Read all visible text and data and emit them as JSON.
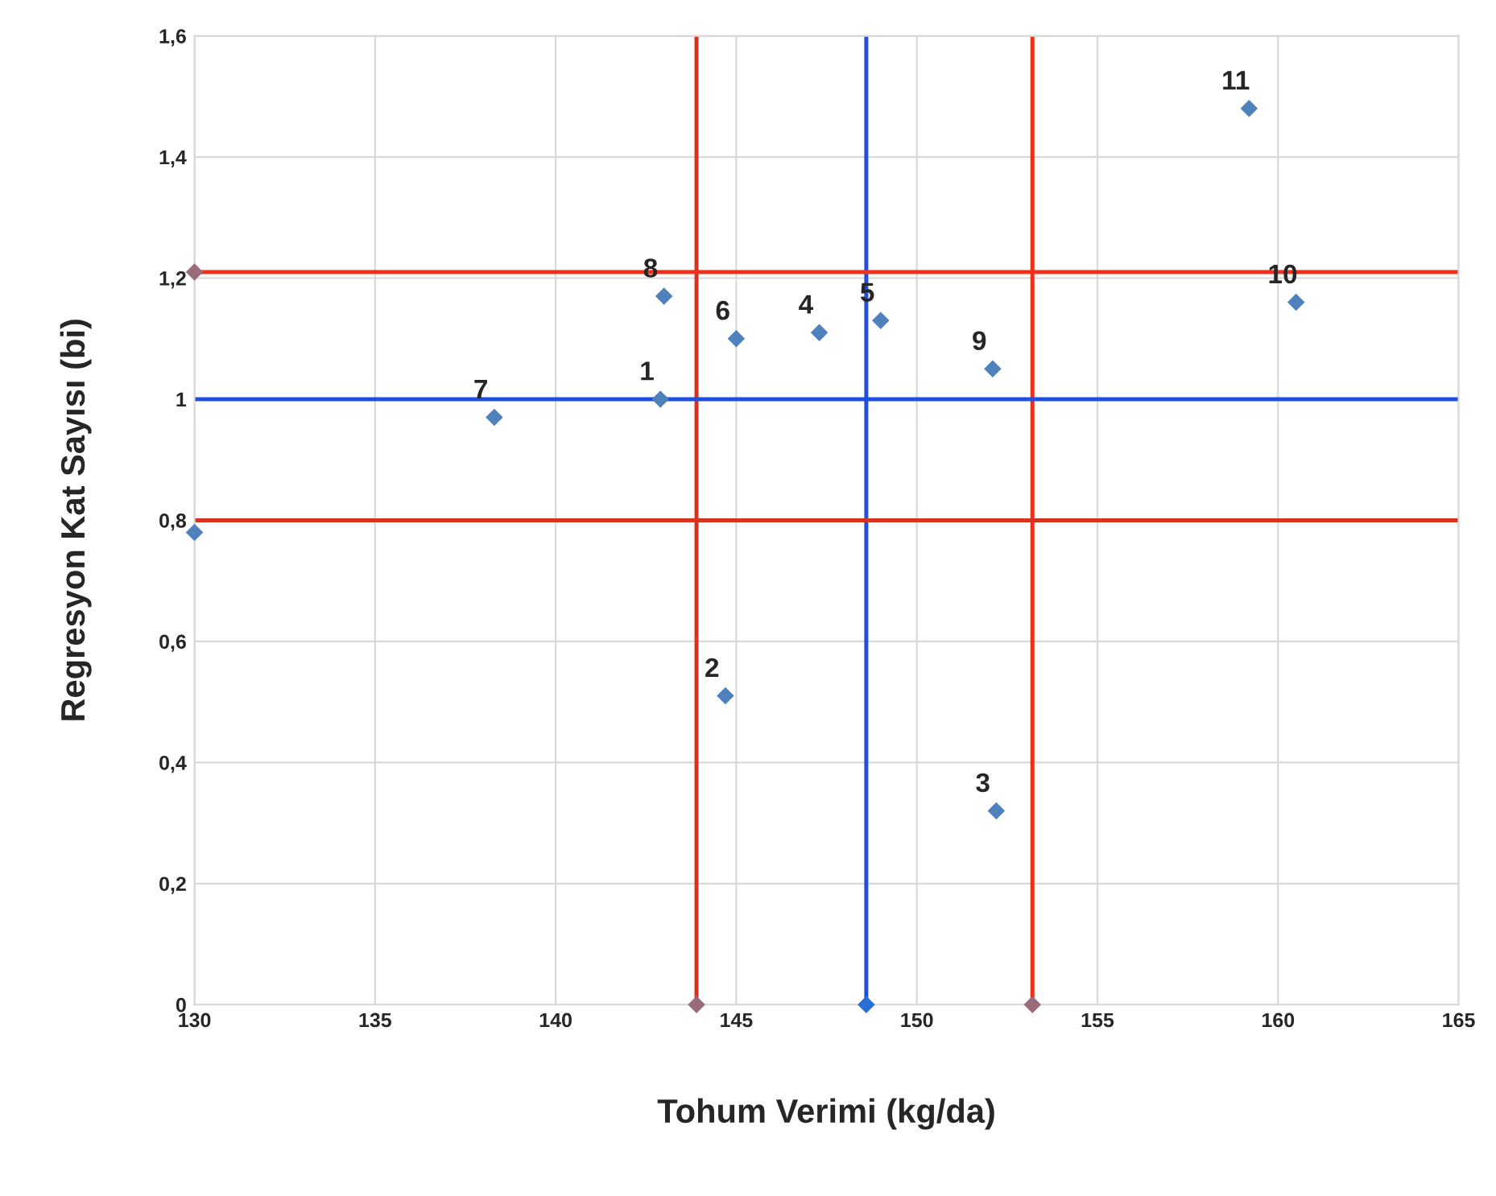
{
  "chart_data": {
    "type": "scatter",
    "xlabel": "Tohum Verimi (kg/da)",
    "ylabel": "Regresyon Kat Sayısı (bi)",
    "xlim": [
      130,
      165
    ],
    "xticks": [
      130,
      135,
      140,
      145,
      150,
      155,
      160,
      165
    ],
    "ylim": [
      0,
      1.6
    ],
    "yticks": [
      {
        "value": 0,
        "label": "0"
      },
      {
        "value": 0.2,
        "label": "0,2"
      },
      {
        "value": 0.4,
        "label": "0,4"
      },
      {
        "value": 0.6,
        "label": "0,6"
      },
      {
        "value": 0.8,
        "label": "0,8"
      },
      {
        "value": 1,
        "label": "1"
      },
      {
        "value": 1.2,
        "label": "1,2"
      },
      {
        "value": 1.4,
        "label": "1,4"
      },
      {
        "value": 1.6,
        "label": "1,6"
      }
    ],
    "grid": true,
    "marker": "diamond",
    "series": [
      {
        "color": "#4f81bd",
        "x": [
          142.9,
          144.7,
          152.2,
          147.3,
          149.0,
          145.0,
          138.3,
          143.0,
          152.1,
          160.5,
          159.2
        ],
        "values": [
          1.0,
          0.51,
          0.32,
          1.11,
          1.13,
          1.1,
          0.97,
          1.17,
          1.05,
          1.16,
          1.48
        ]
      },
      {
        "x": [
          130,
          130,
          143.9,
          148.6,
          153.2
        ],
        "values": [
          1.21,
          0.78,
          0,
          0,
          0
        ],
        "colors": [
          "#9b6b7b",
          "#4f81bd",
          "#9b6b7b",
          "#2a6fd6",
          "#9b6b7b"
        ]
      }
    ],
    "ref_lines": [
      {
        "axis": "x",
        "value": 143.9,
        "color": "#d8321e"
      },
      {
        "axis": "x",
        "value": 148.6,
        "color": "#1f4fe0"
      },
      {
        "axis": "x",
        "value": 153.2,
        "color": "#e8301a"
      },
      {
        "axis": "y",
        "value": 1.21,
        "color": "#f0301a"
      },
      {
        "axis": "y",
        "value": 1.0,
        "color": "#1f4fe0"
      },
      {
        "axis": "y",
        "value": 0.8,
        "color": "#d8321e"
      }
    ],
    "annotations": [
      {
        "text": "1",
        "x": 142.9,
        "y": 1.0
      },
      {
        "text": "2",
        "x": 144.7,
        "y": 0.51
      },
      {
        "text": "3",
        "x": 152.2,
        "y": 0.32
      },
      {
        "text": "4",
        "x": 147.3,
        "y": 1.11
      },
      {
        "text": "5",
        "x": 149.0,
        "y": 1.13
      },
      {
        "text": "6",
        "x": 145.0,
        "y": 1.1
      },
      {
        "text": "7",
        "x": 138.3,
        "y": 0.97
      },
      {
        "text": "8",
        "x": 143.0,
        "y": 1.17
      },
      {
        "text": "9",
        "x": 152.1,
        "y": 1.05
      },
      {
        "text": "10",
        "x": 160.5,
        "y": 1.16
      },
      {
        "text": "11",
        "x": 159.2,
        "y": 1.48
      }
    ]
  }
}
